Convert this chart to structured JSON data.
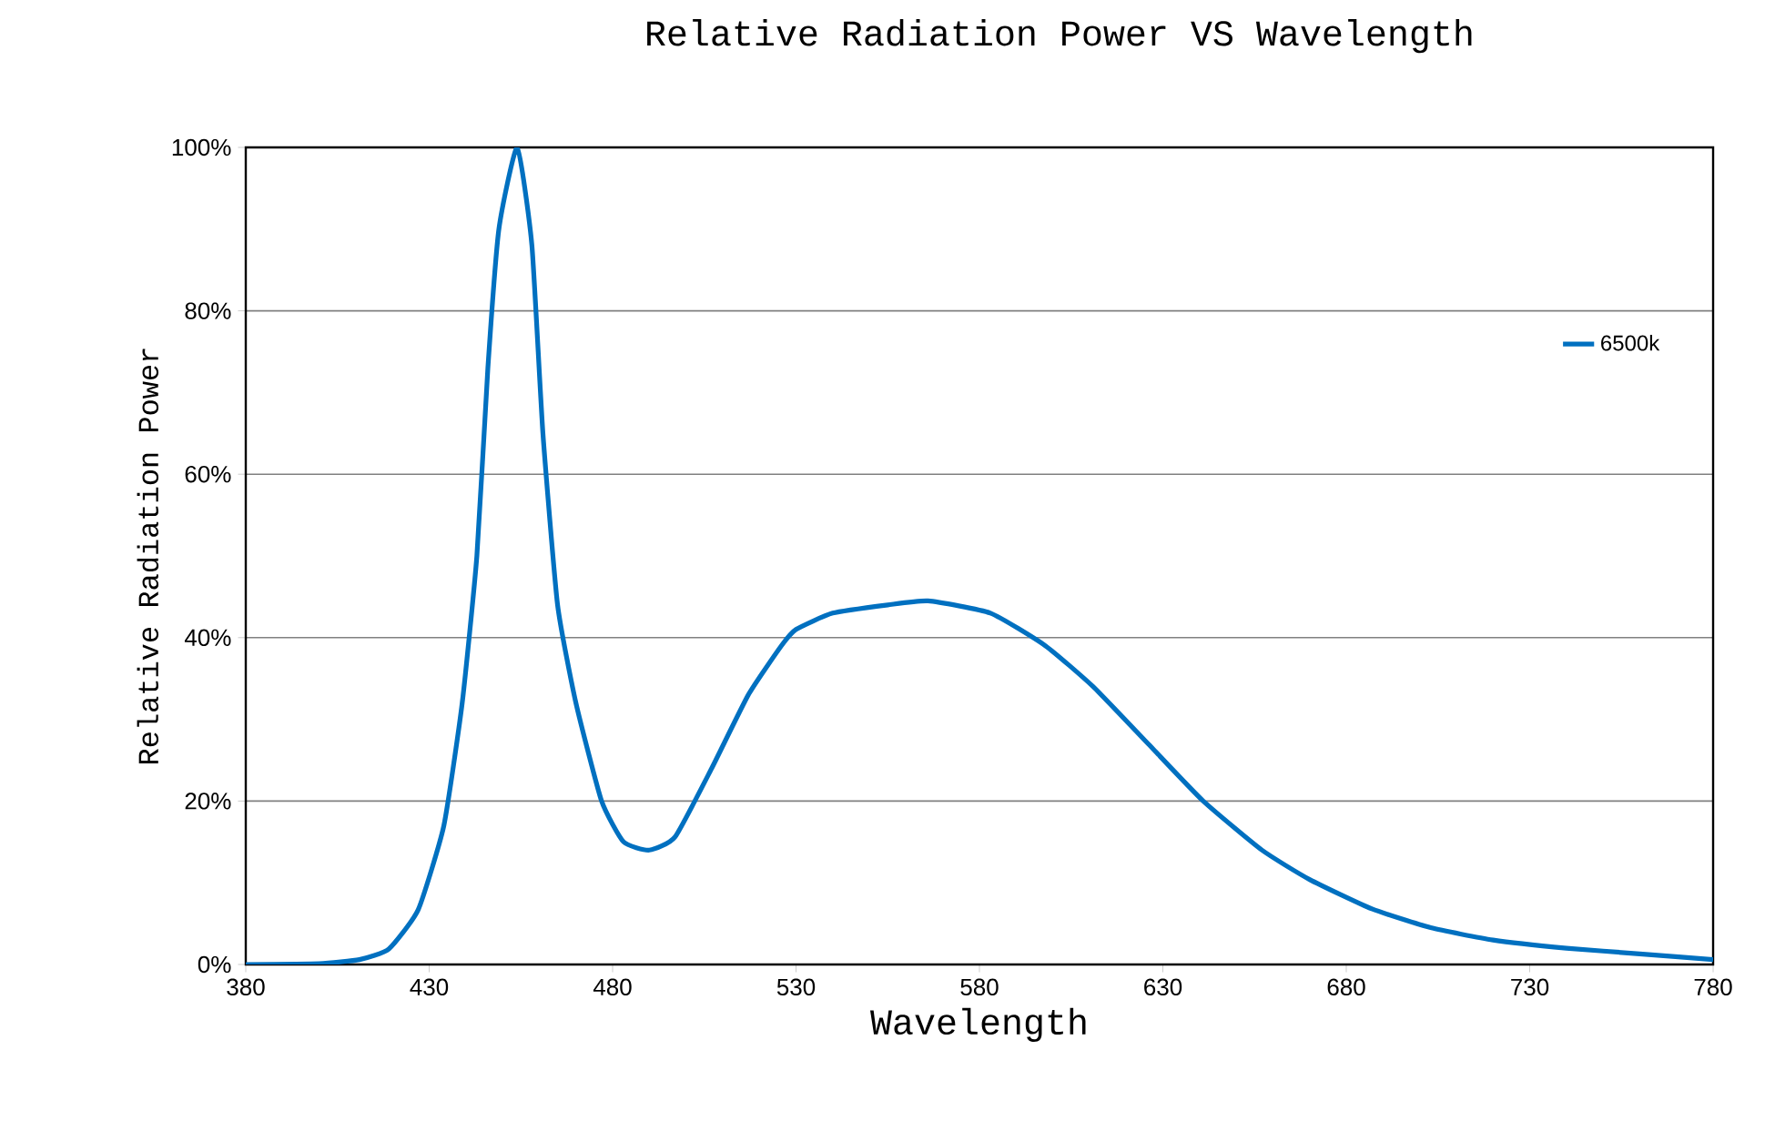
{
  "chart_data": {
    "type": "line",
    "title": "Relative Radiation Power VS Wavelength",
    "xlabel": "Wavelength",
    "ylabel": "Relative Radiation Power",
    "xlim": [
      380,
      780
    ],
    "xticks": [
      380,
      430,
      480,
      530,
      580,
      630,
      680,
      730,
      780
    ],
    "ylim": [
      0,
      100
    ],
    "yticks": [
      {
        "value": 0,
        "label": "0%"
      },
      {
        "value": 20,
        "label": "20%"
      },
      {
        "value": 40,
        "label": "40%"
      },
      {
        "value": 60,
        "label": "60%"
      },
      {
        "value": 80,
        "label": "80%"
      },
      {
        "value": 100,
        "label": "100%"
      }
    ],
    "grid": "y",
    "legend": "top right",
    "marker": "none",
    "line_style": "solid",
    "series": [
      {
        "name": "6500k",
        "color": "#0070c0",
        "x": [
          380,
          400,
          411,
          419,
          427,
          434,
          439,
          443,
          446,
          449,
          454,
          458,
          461,
          465,
          470,
          477,
          483,
          490,
          497,
          507,
          517,
          526,
          530,
          540,
          555,
          566,
          583,
          598,
          611,
          626,
          641,
          657,
          670,
          687,
          703,
          720,
          740,
          760,
          780
        ],
        "values": [
          0,
          0.1,
          0.6,
          1.9,
          6.7,
          17,
          32,
          50,
          73,
          90,
          100,
          88,
          65,
          44,
          32,
          20,
          15,
          14,
          15.6,
          24,
          33,
          39,
          41,
          43,
          44,
          44.5,
          43,
          39,
          34,
          27,
          20,
          14,
          10.4,
          6.8,
          4.5,
          3,
          2,
          1.3,
          0.6
        ]
      }
    ]
  }
}
